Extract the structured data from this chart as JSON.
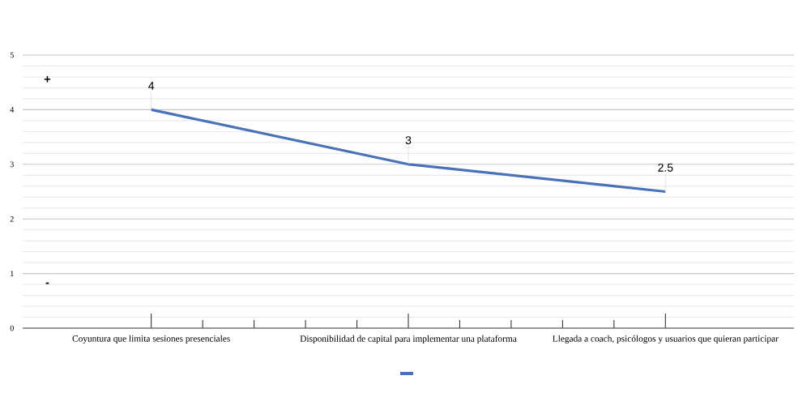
{
  "chart_data": {
    "type": "line",
    "categories": [
      "Coyuntura que limita sesiones presenciales",
      "Disponibilidad de capital para implementar una plataforma",
      "Llegada a coach, psicólogos y usuarios que quieran participar"
    ],
    "series": [
      {
        "color": "#4a72b8",
        "values": [
          4,
          3,
          2.5
        ]
      }
    ],
    "ylim": [
      0,
      5
    ],
    "yticks": [
      0,
      1,
      2,
      3,
      4,
      5
    ],
    "grid": "y",
    "data_labels": true,
    "marker": "none",
    "line_style": "solid",
    "annotations": [
      "+",
      "-"
    ]
  }
}
